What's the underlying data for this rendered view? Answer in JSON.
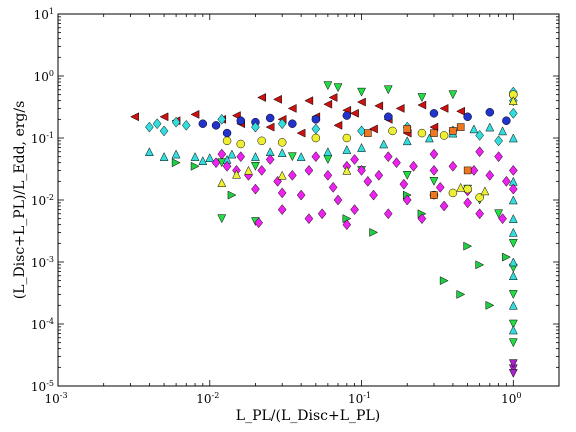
{
  "chart_data": {
    "type": "scatter",
    "xlabel": "L_PL/(L_Disc+L_PL)",
    "ylabel": "(L_Disc+L_PL)/L_Edd, erg/s",
    "xscale": "log",
    "yscale": "log",
    "xlim": [
      0.001,
      2
    ],
    "ylim": [
      1e-05,
      10
    ],
    "grid": false,
    "x_ticks": [
      {
        "value": 0.001,
        "base": "10",
        "exp": "-3"
      },
      {
        "value": 0.01,
        "base": "10",
        "exp": "-2"
      },
      {
        "value": 0.1,
        "base": "10",
        "exp": "-1"
      },
      {
        "value": 1,
        "base": "10",
        "exp": "0"
      }
    ],
    "y_ticks": [
      {
        "value": 1e-05,
        "base": "10",
        "exp": "-5"
      },
      {
        "value": 0.0001,
        "base": "10",
        "exp": "-4"
      },
      {
        "value": 0.001,
        "base": "10",
        "exp": "-3"
      },
      {
        "value": 0.01,
        "base": "10",
        "exp": "-2"
      },
      {
        "value": 0.1,
        "base": "10",
        "exp": "-1"
      },
      {
        "value": 1,
        "base": "10",
        "exp": "0"
      },
      {
        "value": 10,
        "base": "10",
        "exp": "1"
      }
    ],
    "series": [
      {
        "color": "#cc1111",
        "marker": "triangle-left",
        "points": [
          [
            0.0032,
            0.22
          ],
          [
            0.005,
            0.22
          ],
          [
            0.006,
            0.19
          ],
          [
            0.008,
            0.24
          ],
          [
            0.012,
            0.2
          ],
          [
            0.015,
            0.23
          ],
          [
            0.022,
            0.45
          ],
          [
            0.028,
            0.42
          ],
          [
            0.035,
            0.3
          ],
          [
            0.045,
            0.4
          ],
          [
            0.06,
            0.35
          ],
          [
            0.08,
            0.28
          ],
          [
            0.1,
            0.38
          ],
          [
            0.13,
            0.33
          ],
          [
            0.18,
            0.3
          ],
          [
            0.25,
            0.34
          ],
          [
            0.35,
            0.3
          ],
          [
            0.45,
            0.27
          ],
          [
            0.03,
            0.2
          ],
          [
            0.04,
            0.12
          ],
          [
            0.07,
            0.16
          ],
          [
            0.12,
            0.14
          ],
          [
            0.2,
            0.12
          ],
          [
            0.3,
            0.15
          ],
          [
            0.05,
            0.22
          ],
          [
            0.09,
            0.25
          ],
          [
            0.15,
            0.2
          ],
          [
            0.016,
            0.17
          ],
          [
            0.025,
            0.15
          ],
          [
            0.065,
            0.45
          ]
        ]
      },
      {
        "color": "#2233cc",
        "marker": "circle",
        "points": [
          [
            0.009,
            0.17
          ],
          [
            0.011,
            0.16
          ],
          [
            0.013,
            0.12
          ],
          [
            0.016,
            0.19
          ],
          [
            0.02,
            0.18
          ],
          [
            0.025,
            0.21
          ],
          [
            0.035,
            0.17
          ],
          [
            0.05,
            0.2
          ],
          [
            0.08,
            0.23
          ],
          [
            0.15,
            0.22
          ],
          [
            0.3,
            0.25
          ],
          [
            0.5,
            0.22
          ],
          [
            0.7,
            0.26
          ],
          [
            0.9,
            0.19
          ],
          [
            1.0,
            0.5
          ]
        ]
      },
      {
        "color": "#22dd44",
        "marker": "triangle-down",
        "points": [
          [
            0.06,
            0.7
          ],
          [
            0.07,
            0.65
          ],
          [
            0.1,
            0.55
          ],
          [
            0.15,
            0.6
          ],
          [
            0.25,
            0.45
          ],
          [
            0.4,
            0.5
          ],
          [
            0.012,
            0.04
          ],
          [
            0.02,
            0.035
          ],
          [
            0.035,
            0.05
          ],
          [
            0.06,
            0.045
          ],
          [
            0.1,
            0.03
          ],
          [
            0.2,
            0.025
          ],
          [
            0.3,
            0.02
          ],
          [
            0.5,
            0.015
          ],
          [
            0.6,
            0.01
          ],
          [
            0.8,
            0.006
          ],
          [
            0.012,
            0.005
          ],
          [
            0.02,
            0.0045
          ],
          [
            1.0,
            0.002
          ],
          [
            1.0,
            0.0008
          ],
          [
            1.0,
            0.0003
          ],
          [
            1.0,
            0.0001
          ],
          [
            1.0,
            5e-05
          ]
        ]
      },
      {
        "color": "#22cc44",
        "marker": "triangle-right",
        "points": [
          [
            0.006,
            0.04
          ],
          [
            0.008,
            0.035
          ],
          [
            0.014,
            0.012
          ],
          [
            0.5,
            0.0018
          ],
          [
            0.6,
            0.0009
          ],
          [
            0.35,
            0.0005
          ],
          [
            0.45,
            0.0003
          ],
          [
            0.7,
            0.0002
          ],
          [
            0.2,
            0.012
          ],
          [
            0.25,
            0.006
          ],
          [
            0.08,
            0.005
          ],
          [
            0.12,
            0.003
          ],
          [
            0.9,
            0.0012
          ]
        ]
      },
      {
        "color": "#33dddd",
        "marker": "diamond",
        "points": [
          [
            0.004,
            0.15
          ],
          [
            0.0045,
            0.17
          ],
          [
            0.005,
            0.13
          ],
          [
            0.006,
            0.18
          ],
          [
            0.007,
            0.16
          ],
          [
            0.012,
            0.2
          ],
          [
            0.02,
            0.15
          ],
          [
            0.03,
            0.17
          ],
          [
            0.05,
            0.14
          ],
          [
            0.1,
            0.13
          ],
          [
            0.2,
            0.15
          ],
          [
            0.4,
            0.13
          ],
          [
            0.6,
            0.11
          ],
          [
            0.8,
            0.09
          ],
          [
            1.0,
            0.25
          ],
          [
            1.0,
            0.4
          ],
          [
            1.0,
            0.55
          ]
        ]
      },
      {
        "color": "#33dddd",
        "marker": "triangle-up",
        "points": [
          [
            0.004,
            0.06
          ],
          [
            0.005,
            0.05
          ],
          [
            0.006,
            0.055
          ],
          [
            0.008,
            0.05
          ],
          [
            0.01,
            0.048
          ],
          [
            0.014,
            0.055
          ],
          [
            0.02,
            0.05
          ],
          [
            0.03,
            0.058
          ],
          [
            0.04,
            0.05
          ],
          [
            0.06,
            0.06
          ],
          [
            0.08,
            0.065
          ],
          [
            0.1,
            0.07
          ],
          [
            0.14,
            0.08
          ],
          [
            0.2,
            0.09
          ],
          [
            0.28,
            0.1
          ],
          [
            0.4,
            0.12
          ],
          [
            0.55,
            0.14
          ],
          [
            0.7,
            0.15
          ],
          [
            0.85,
            0.13
          ],
          [
            0.009,
            0.043
          ],
          [
            0.013,
            0.045
          ],
          [
            0.025,
            0.06
          ],
          [
            1.0,
            0.1
          ],
          [
            1.0,
            0.02
          ],
          [
            1.0,
            0.01
          ],
          [
            1.0,
            0.005
          ],
          [
            1.0,
            0.003
          ],
          [
            1.0,
            0.001
          ],
          [
            1.0,
            0.0006
          ],
          [
            1.0,
            0.0002
          ],
          [
            1.0,
            8e-05
          ]
        ]
      },
      {
        "color": "#ee22ee",
        "marker": "diamond",
        "points": [
          [
            0.011,
            0.04
          ],
          [
            0.013,
            0.035
          ],
          [
            0.015,
            0.03
          ],
          [
            0.018,
            0.025
          ],
          [
            0.022,
            0.03
          ],
          [
            0.028,
            0.02
          ],
          [
            0.035,
            0.025
          ],
          [
            0.045,
            0.03
          ],
          [
            0.06,
            0.025
          ],
          [
            0.08,
            0.035
          ],
          [
            0.1,
            0.03
          ],
          [
            0.13,
            0.025
          ],
          [
            0.17,
            0.04
          ],
          [
            0.22,
            0.035
          ],
          [
            0.3,
            0.03
          ],
          [
            0.4,
            0.035
          ],
          [
            0.55,
            0.03
          ],
          [
            0.7,
            0.025
          ],
          [
            0.9,
            0.02
          ],
          [
            0.02,
            0.015
          ],
          [
            0.04,
            0.012
          ],
          [
            0.07,
            0.01
          ],
          [
            0.12,
            0.012
          ],
          [
            0.2,
            0.01
          ],
          [
            0.35,
            0.008
          ],
          [
            0.6,
            0.006
          ],
          [
            0.85,
            0.005
          ],
          [
            0.021,
            0.0043
          ],
          [
            0.03,
            0.007
          ],
          [
            0.055,
            0.006
          ],
          [
            0.045,
            0.005
          ],
          [
            0.08,
            0.004
          ],
          [
            0.09,
            0.007
          ],
          [
            0.15,
            0.006
          ],
          [
            0.25,
            0.005
          ],
          [
            0.5,
            0.009
          ],
          [
            0.012,
            0.055
          ],
          [
            0.016,
            0.05
          ],
          [
            0.025,
            0.045
          ],
          [
            0.05,
            0.05
          ],
          [
            0.09,
            0.045
          ],
          [
            0.15,
            0.05
          ],
          [
            0.3,
            0.055
          ],
          [
            0.6,
            0.06
          ],
          [
            0.8,
            0.05
          ],
          [
            0.03,
            0.013
          ],
          [
            0.065,
            0.016
          ],
          [
            0.11,
            0.02
          ],
          [
            0.19,
            0.018
          ],
          [
            0.33,
            0.016
          ],
          [
            0.5,
            0.014
          ],
          [
            1.0,
            0.03
          ],
          [
            1.0,
            0.015
          ]
        ]
      },
      {
        "color": "#eeee33",
        "marker": "circle",
        "points": [
          [
            0.013,
            0.09
          ],
          [
            0.016,
            0.08
          ],
          [
            0.022,
            0.09
          ],
          [
            0.03,
            0.085
          ],
          [
            0.05,
            0.1
          ],
          [
            0.08,
            0.1
          ],
          [
            0.16,
            0.13
          ],
          [
            0.25,
            0.12
          ],
          [
            0.35,
            0.11
          ],
          [
            0.5,
            0.015
          ],
          [
            0.3,
            0.012
          ],
          [
            0.4,
            0.013
          ],
          [
            0.6,
            0.011
          ],
          [
            1.0,
            0.5
          ]
        ]
      },
      {
        "color": "#eeee33",
        "marker": "triangle-up",
        "points": [
          [
            0.012,
            0.019
          ],
          [
            0.015,
            0.026
          ],
          [
            0.018,
            0.03
          ],
          [
            0.03,
            0.025
          ],
          [
            0.08,
            0.03
          ],
          [
            0.45,
            0.016
          ],
          [
            0.65,
            0.014
          ],
          [
            1.0,
            0.4
          ]
        ]
      },
      {
        "color": "#ee7722",
        "marker": "square",
        "points": [
          [
            0.11,
            0.12
          ],
          [
            0.2,
            0.14
          ],
          [
            0.3,
            0.12
          ],
          [
            0.4,
            0.13
          ],
          [
            0.45,
            0.15
          ],
          [
            0.3,
            0.012
          ],
          [
            0.5,
            0.03
          ]
        ]
      },
      {
        "color": "#aa22cc",
        "marker": "triangle-down",
        "points": [
          [
            1.0,
            1.9e-05
          ],
          [
            1.0,
            1.6e-05
          ],
          [
            1.0,
            2.3e-05
          ]
        ]
      }
    ]
  }
}
